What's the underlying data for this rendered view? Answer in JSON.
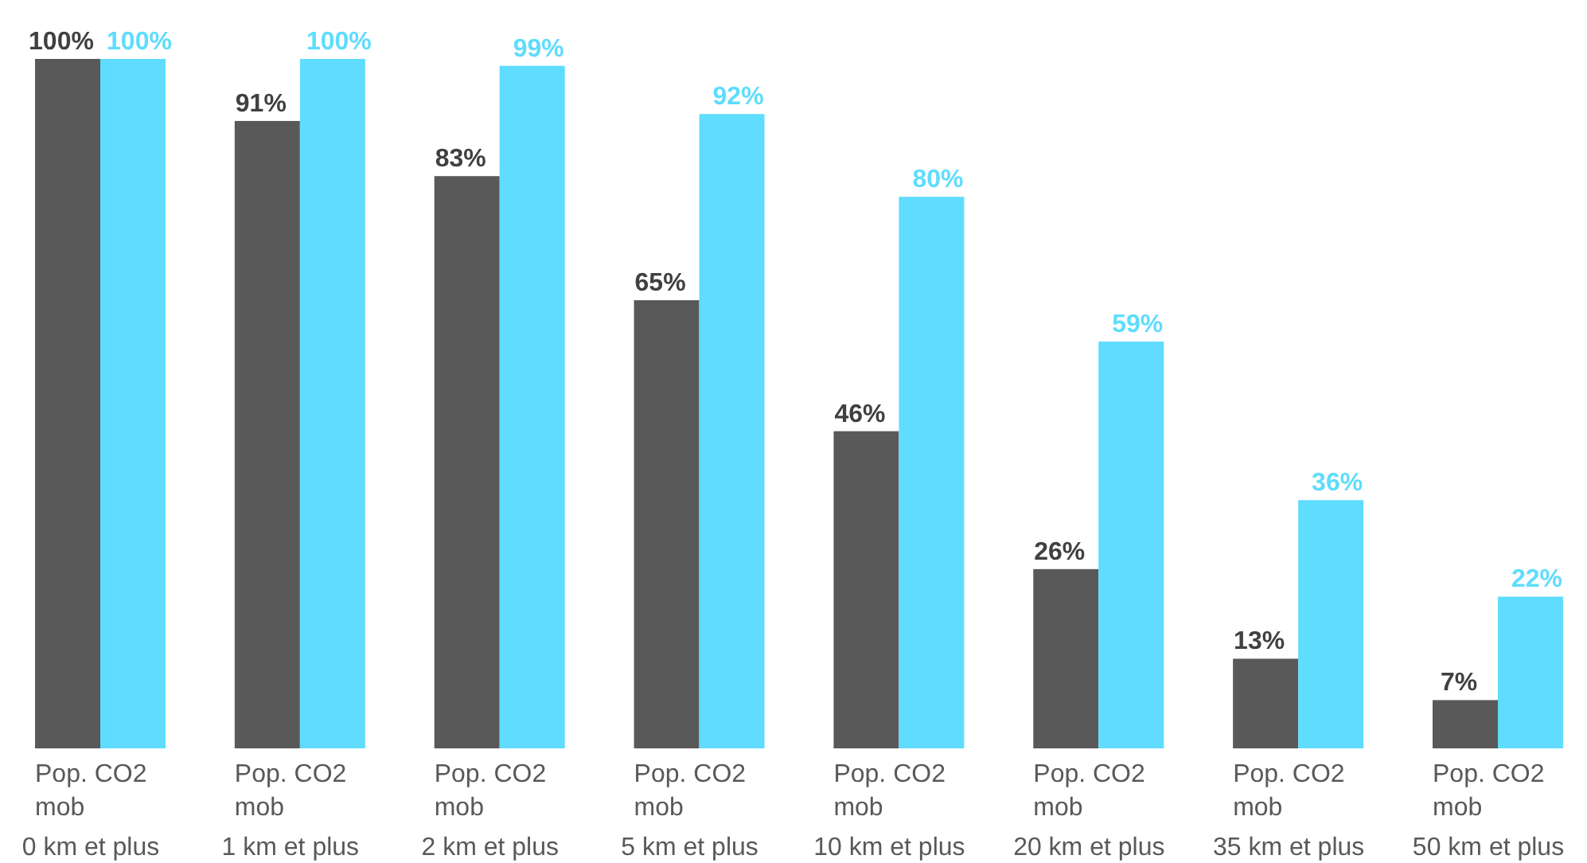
{
  "chart_data": {
    "type": "bar",
    "categories": [
      "0 km et plus",
      "1 km et plus",
      "2 km et plus",
      "5 km et plus",
      "10 km et plus",
      "20 km et plus",
      "35 km et plus",
      "50 km et plus"
    ],
    "series": [
      {
        "name": "Pop.",
        "color": "#595959",
        "values": [
          100,
          91,
          83,
          65,
          46,
          26,
          13,
          7
        ],
        "value_labels": [
          "100%",
          "91%",
          "83%",
          "65%",
          "46%",
          "26%",
          "13%",
          "7%"
        ]
      },
      {
        "name": "CO2 mob",
        "color": "#5fdcfe",
        "values": [
          100,
          100,
          99,
          92,
          80,
          59,
          36,
          22
        ],
        "value_labels": [
          "100%",
          "100%",
          "99%",
          "92%",
          "80%",
          "59%",
          "36%",
          "22%"
        ]
      }
    ],
    "ylim": [
      0,
      100
    ]
  }
}
